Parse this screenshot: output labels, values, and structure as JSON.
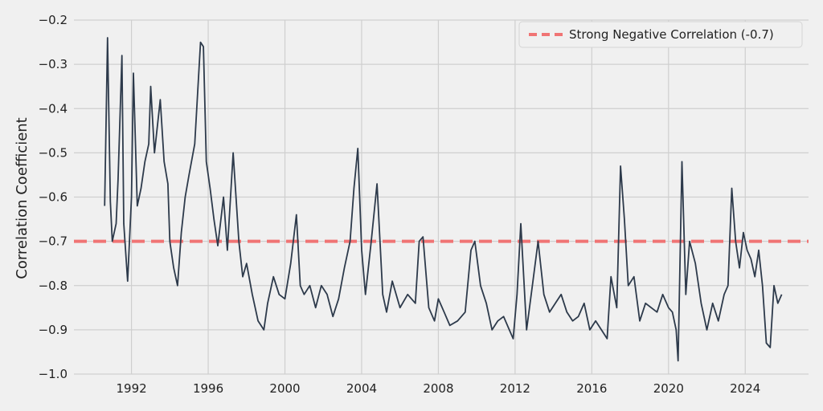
{
  "chart_data": {
    "type": "line",
    "title": "",
    "xlabel": "",
    "ylabel": "Correlation Coefficient",
    "xlim": [
      1989.0,
      2027.3
    ],
    "ylim": [
      -1.0,
      -0.2
    ],
    "x_ticks": [
      1992,
      1996,
      2000,
      2004,
      2008,
      2012,
      2016,
      2020,
      2024
    ],
    "x_tick_labels": [
      "1992",
      "1996",
      "2000",
      "2004",
      "2008",
      "2012",
      "2016",
      "2020",
      "2024"
    ],
    "y_ticks": [
      -1.0,
      -0.9,
      -0.8,
      -0.7,
      -0.6,
      -0.5,
      -0.4,
      -0.3,
      -0.2
    ],
    "y_tick_labels": [
      "−1.0",
      "−0.9",
      "−0.8",
      "−0.7",
      "−0.6",
      "−0.5",
      "−0.4",
      "−0.3",
      "−0.2"
    ],
    "grid": true,
    "legend_position": "top-right",
    "series": [
      {
        "color": "#2d3a4b",
        "x": [
          1990.6,
          1990.75,
          1990.9,
          1991.0,
          1991.2,
          1991.3,
          1991.5,
          1991.6,
          1991.8,
          1992.0,
          1992.1,
          1992.3,
          1992.5,
          1992.7,
          1992.9,
          1993.0,
          1993.2,
          1993.5,
          1993.7,
          1993.9,
          1994.0,
          1994.2,
          1994.4,
          1994.6,
          1994.8,
          1995.0,
          1995.3,
          1995.6,
          1995.75,
          1995.9,
          1996.1,
          1996.3,
          1996.5,
          1996.8,
          1997.0,
          1997.3,
          1997.6,
          1997.8,
          1998.0,
          1998.3,
          1998.6,
          1998.9,
          1999.1,
          1999.4,
          1999.7,
          2000.0,
          2000.3,
          2000.6,
          2000.8,
          2001.0,
          2001.3,
          2001.6,
          2001.9,
          2002.2,
          2002.5,
          2002.8,
          2003.1,
          2003.4,
          2003.6,
          2003.8,
          2004.0,
          2004.2,
          2004.5,
          2004.8,
          2005.1,
          2005.3,
          2005.6,
          2006.0,
          2006.4,
          2006.8,
          2007.0,
          2007.2,
          2007.5,
          2007.8,
          2008.0,
          2008.3,
          2008.6,
          2009.0,
          2009.4,
          2009.7,
          2009.9,
          2010.2,
          2010.5,
          2010.8,
          2011.1,
          2011.4,
          2011.7,
          2011.9,
          2012.1,
          2012.3,
          2012.6,
          2012.9,
          2013.2,
          2013.5,
          2013.8,
          2014.1,
          2014.4,
          2014.7,
          2015.0,
          2015.3,
          2015.6,
          2015.9,
          2016.2,
          2016.5,
          2016.8,
          2017.0,
          2017.3,
          2017.5,
          2017.7,
          2017.9,
          2018.2,
          2018.5,
          2018.8,
          2019.1,
          2019.4,
          2019.7,
          2020.0,
          2020.2,
          2020.4,
          2020.5,
          2020.7,
          2020.9,
          2021.1,
          2021.4,
          2021.7,
          2022.0,
          2022.3,
          2022.6,
          2022.9,
          2023.1,
          2023.3,
          2023.5,
          2023.7,
          2023.9,
          2024.1,
          2024.3,
          2024.5,
          2024.7,
          2024.9,
          2025.1,
          2025.3,
          2025.5,
          2025.7,
          2025.9
        ],
        "values": [
          -0.62,
          -0.24,
          -0.61,
          -0.7,
          -0.66,
          -0.56,
          -0.28,
          -0.66,
          -0.79,
          -0.6,
          -0.32,
          -0.62,
          -0.58,
          -0.52,
          -0.48,
          -0.35,
          -0.5,
          -0.38,
          -0.52,
          -0.57,
          -0.7,
          -0.76,
          -0.8,
          -0.68,
          -0.6,
          -0.55,
          -0.48,
          -0.25,
          -0.26,
          -0.52,
          -0.58,
          -0.65,
          -0.71,
          -0.6,
          -0.72,
          -0.5,
          -0.7,
          -0.78,
          -0.75,
          -0.82,
          -0.88,
          -0.9,
          -0.84,
          -0.78,
          -0.82,
          -0.83,
          -0.75,
          -0.64,
          -0.8,
          -0.82,
          -0.8,
          -0.85,
          -0.8,
          -0.82,
          -0.87,
          -0.83,
          -0.76,
          -0.7,
          -0.58,
          -0.49,
          -0.72,
          -0.82,
          -0.7,
          -0.57,
          -0.82,
          -0.86,
          -0.79,
          -0.85,
          -0.82,
          -0.84,
          -0.7,
          -0.69,
          -0.85,
          -0.88,
          -0.83,
          -0.86,
          -0.89,
          -0.88,
          -0.86,
          -0.72,
          -0.7,
          -0.8,
          -0.84,
          -0.9,
          -0.88,
          -0.87,
          -0.9,
          -0.92,
          -0.82,
          -0.66,
          -0.9,
          -0.8,
          -0.7,
          -0.82,
          -0.86,
          -0.84,
          -0.82,
          -0.86,
          -0.88,
          -0.87,
          -0.84,
          -0.9,
          -0.88,
          -0.9,
          -0.92,
          -0.78,
          -0.85,
          -0.53,
          -0.65,
          -0.8,
          -0.78,
          -0.88,
          -0.84,
          -0.85,
          -0.86,
          -0.82,
          -0.85,
          -0.86,
          -0.9,
          -0.97,
          -0.52,
          -0.82,
          -0.7,
          -0.75,
          -0.84,
          -0.9,
          -0.84,
          -0.88,
          -0.82,
          -0.8,
          -0.58,
          -0.7,
          -0.76,
          -0.68,
          -0.72,
          -0.74,
          -0.78,
          -0.72,
          -0.8,
          -0.93,
          -0.94,
          -0.8,
          -0.84,
          -0.82
        ]
      }
    ],
    "reference_lines": [
      {
        "y": -0.7,
        "color": "#f07474",
        "label": "Strong Negative Correlation (-0.7)"
      }
    ]
  }
}
